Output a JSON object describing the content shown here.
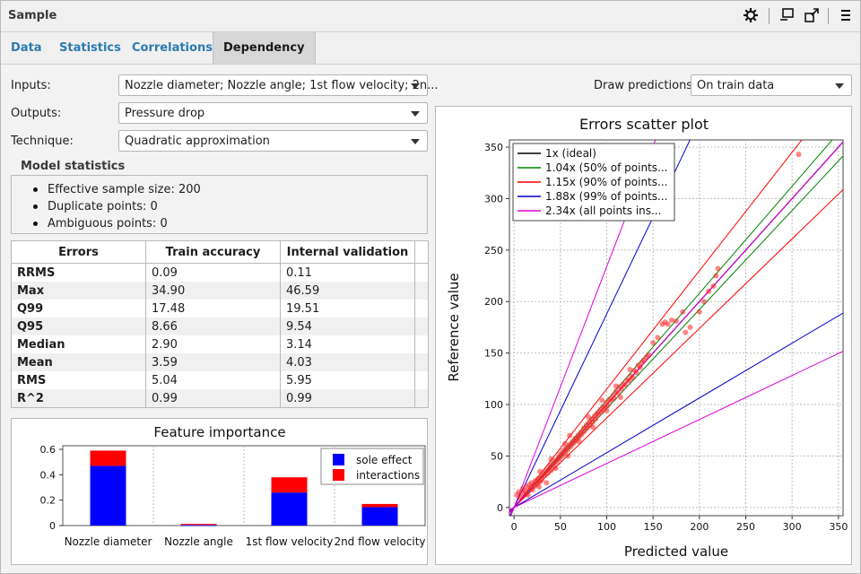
{
  "window": {
    "title": "Sample"
  },
  "tabs": [
    {
      "label": "Data",
      "active": false
    },
    {
      "label": "Statistics",
      "active": false
    },
    {
      "label": "Correlations",
      "active": false
    },
    {
      "label": "Dependency",
      "active": true
    }
  ],
  "form": {
    "inputs_label": "Inputs:",
    "inputs_value": "Nozzle diameter; Nozzle angle; 1st flow velocity; 2n...",
    "outputs_label": "Outputs:",
    "outputs_value": "Pressure drop",
    "technique_label": "Technique:",
    "technique_value": "Quadratic approximation",
    "draw_label": "Draw predictions:",
    "draw_value": "On train data"
  },
  "model_stats": {
    "title": "Model statistics",
    "items": [
      "Effective sample size: 200",
      "Duplicate points: 0",
      "Ambiguous points: 0"
    ]
  },
  "errors_table": {
    "headers": [
      "Errors",
      "Train accuracy",
      "Internal validation"
    ],
    "rows": [
      [
        "RRMS",
        "0.09",
        "0.11"
      ],
      [
        "Max",
        "34.90",
        "46.59"
      ],
      [
        "Q99",
        "17.48",
        "19.51"
      ],
      [
        "Q95",
        "8.66",
        "9.54"
      ],
      [
        "Median",
        "2.90",
        "3.14"
      ],
      [
        "Mean",
        "3.59",
        "4.03"
      ],
      [
        "RMS",
        "5.04",
        "5.95"
      ],
      [
        "R^2",
        "0.99",
        "0.99"
      ]
    ]
  },
  "chart_data": [
    {
      "type": "bar",
      "title": "Feature importance",
      "stacked": true,
      "categories": [
        "Nozzle diameter",
        "Nozzle angle",
        "1st flow velocity",
        "2nd flow velocity"
      ],
      "series": [
        {
          "name": "sole effect",
          "color": "#0000ff",
          "values": [
            0.47,
            0.005,
            0.26,
            0.145
          ]
        },
        {
          "name": "interactions",
          "color": "#ff0000",
          "values": [
            0.12,
            0.008,
            0.12,
            0.025
          ]
        }
      ],
      "yticks": [
        "0",
        "0.2",
        "0.4",
        "0.6"
      ],
      "ylim": [
        0,
        0.6
      ],
      "legend": "top-right"
    },
    {
      "type": "scatter",
      "title": "Errors scatter plot",
      "xlabel": "Predicted value",
      "ylabel": "Reference value",
      "xlim": [
        -5,
        355
      ],
      "ylim": [
        -8,
        357
      ],
      "xticks": [
        "0",
        "50",
        "100",
        "150",
        "200",
        "250",
        "300",
        "350"
      ],
      "yticks": [
        "0",
        "50",
        "100",
        "150",
        "200",
        "250",
        "300",
        "350"
      ],
      "grid": true,
      "legend": "top-left",
      "lines": [
        {
          "name": "1x (ideal)",
          "factor": 1.0,
          "color": "#000000"
        },
        {
          "name": "1.04x (50% of points...",
          "factor": 1.04,
          "color": "#008000"
        },
        {
          "name": "1.15x (90% of points...",
          "factor": 1.15,
          "color": "#ff0000"
        },
        {
          "name": "1.88x (99% of points...",
          "factor": 1.88,
          "color": "#0000cc"
        },
        {
          "name": "2.34x (all points ins...",
          "factor": 2.34,
          "color": "#dd00dd"
        }
      ],
      "points": [
        [
          3,
          12
        ],
        [
          5,
          15
        ],
        [
          7,
          10
        ],
        [
          9,
          18
        ],
        [
          10,
          14
        ],
        [
          12,
          16
        ],
        [
          13,
          20
        ],
        [
          15,
          12
        ],
        [
          16,
          22
        ],
        [
          18,
          19
        ],
        [
          19,
          24
        ],
        [
          20,
          17
        ],
        [
          22,
          21
        ],
        [
          23,
          26
        ],
        [
          25,
          23
        ],
        [
          26,
          28
        ],
        [
          28,
          25
        ],
        [
          29,
          30
        ],
        [
          30,
          27
        ],
        [
          32,
          33
        ],
        [
          33,
          31
        ],
        [
          35,
          36
        ],
        [
          36,
          33
        ],
        [
          38,
          38
        ],
        [
          39,
          41
        ],
        [
          40,
          36
        ],
        [
          42,
          43
        ],
        [
          43,
          40
        ],
        [
          45,
          46
        ],
        [
          46,
          44
        ],
        [
          48,
          49
        ],
        [
          49,
          47
        ],
        [
          50,
          52
        ],
        [
          52,
          50
        ],
        [
          53,
          55
        ],
        [
          55,
          53
        ],
        [
          56,
          58
        ],
        [
          58,
          56
        ],
        [
          60,
          61
        ],
        [
          61,
          59
        ],
        [
          63,
          64
        ],
        [
          64,
          62
        ],
        [
          66,
          67
        ],
        [
          67,
          65
        ],
        [
          69,
          70
        ],
        [
          70,
          68
        ],
        [
          72,
          73
        ],
        [
          73,
          71
        ],
        [
          75,
          77
        ],
        [
          76,
          74
        ],
        [
          78,
          80
        ],
        [
          79,
          77
        ],
        [
          81,
          83
        ],
        [
          82,
          80
        ],
        [
          84,
          86
        ],
        [
          85,
          83
        ],
        [
          87,
          89
        ],
        [
          88,
          86
        ],
        [
          90,
          92
        ],
        [
          91,
          90
        ],
        [
          93,
          95
        ],
        [
          95,
          93
        ],
        [
          96,
          98
        ],
        [
          98,
          97
        ],
        [
          100,
          102
        ],
        [
          101,
          99
        ],
        [
          103,
          105
        ],
        [
          105,
          104
        ],
        [
          107,
          109
        ],
        [
          108,
          106
        ],
        [
          110,
          113
        ],
        [
          112,
          111
        ],
        [
          114,
          117
        ],
        [
          116,
          115
        ],
        [
          118,
          120
        ],
        [
          120,
          119
        ],
        [
          122,
          124
        ],
        [
          124,
          123
        ],
        [
          126,
          128
        ],
        [
          128,
          126
        ],
        [
          130,
          133
        ],
        [
          132,
          131
        ],
        [
          134,
          138
        ],
        [
          136,
          136
        ],
        [
          138,
          141
        ],
        [
          140,
          143
        ],
        [
          143,
          146
        ],
        [
          145,
          148
        ],
        [
          150,
          160
        ],
        [
          155,
          165
        ],
        [
          160,
          178
        ],
        [
          163,
          180
        ],
        [
          166,
          178
        ],
        [
          170,
          182
        ],
        [
          175,
          181
        ],
        [
          182,
          190
        ],
        [
          185,
          170
        ],
        [
          190,
          175
        ],
        [
          200,
          190
        ],
        [
          205,
          200
        ],
        [
          210,
          210
        ],
        [
          215,
          215
        ],
        [
          218,
          225
        ],
        [
          220,
          232
        ],
        [
          307,
          343
        ],
        [
          35,
          24
        ],
        [
          45,
          38
        ],
        [
          58,
          50
        ],
        [
          70,
          64
        ],
        [
          85,
          78
        ],
        [
          100,
          94
        ],
        [
          115,
          107
        ],
        [
          28,
          35
        ],
        [
          40,
          47
        ],
        [
          55,
          62
        ],
        [
          80,
          88
        ],
        [
          95,
          104
        ],
        [
          110,
          118
        ],
        [
          125,
          134
        ],
        [
          60,
          70
        ],
        [
          27,
          20
        ]
      ]
    }
  ]
}
